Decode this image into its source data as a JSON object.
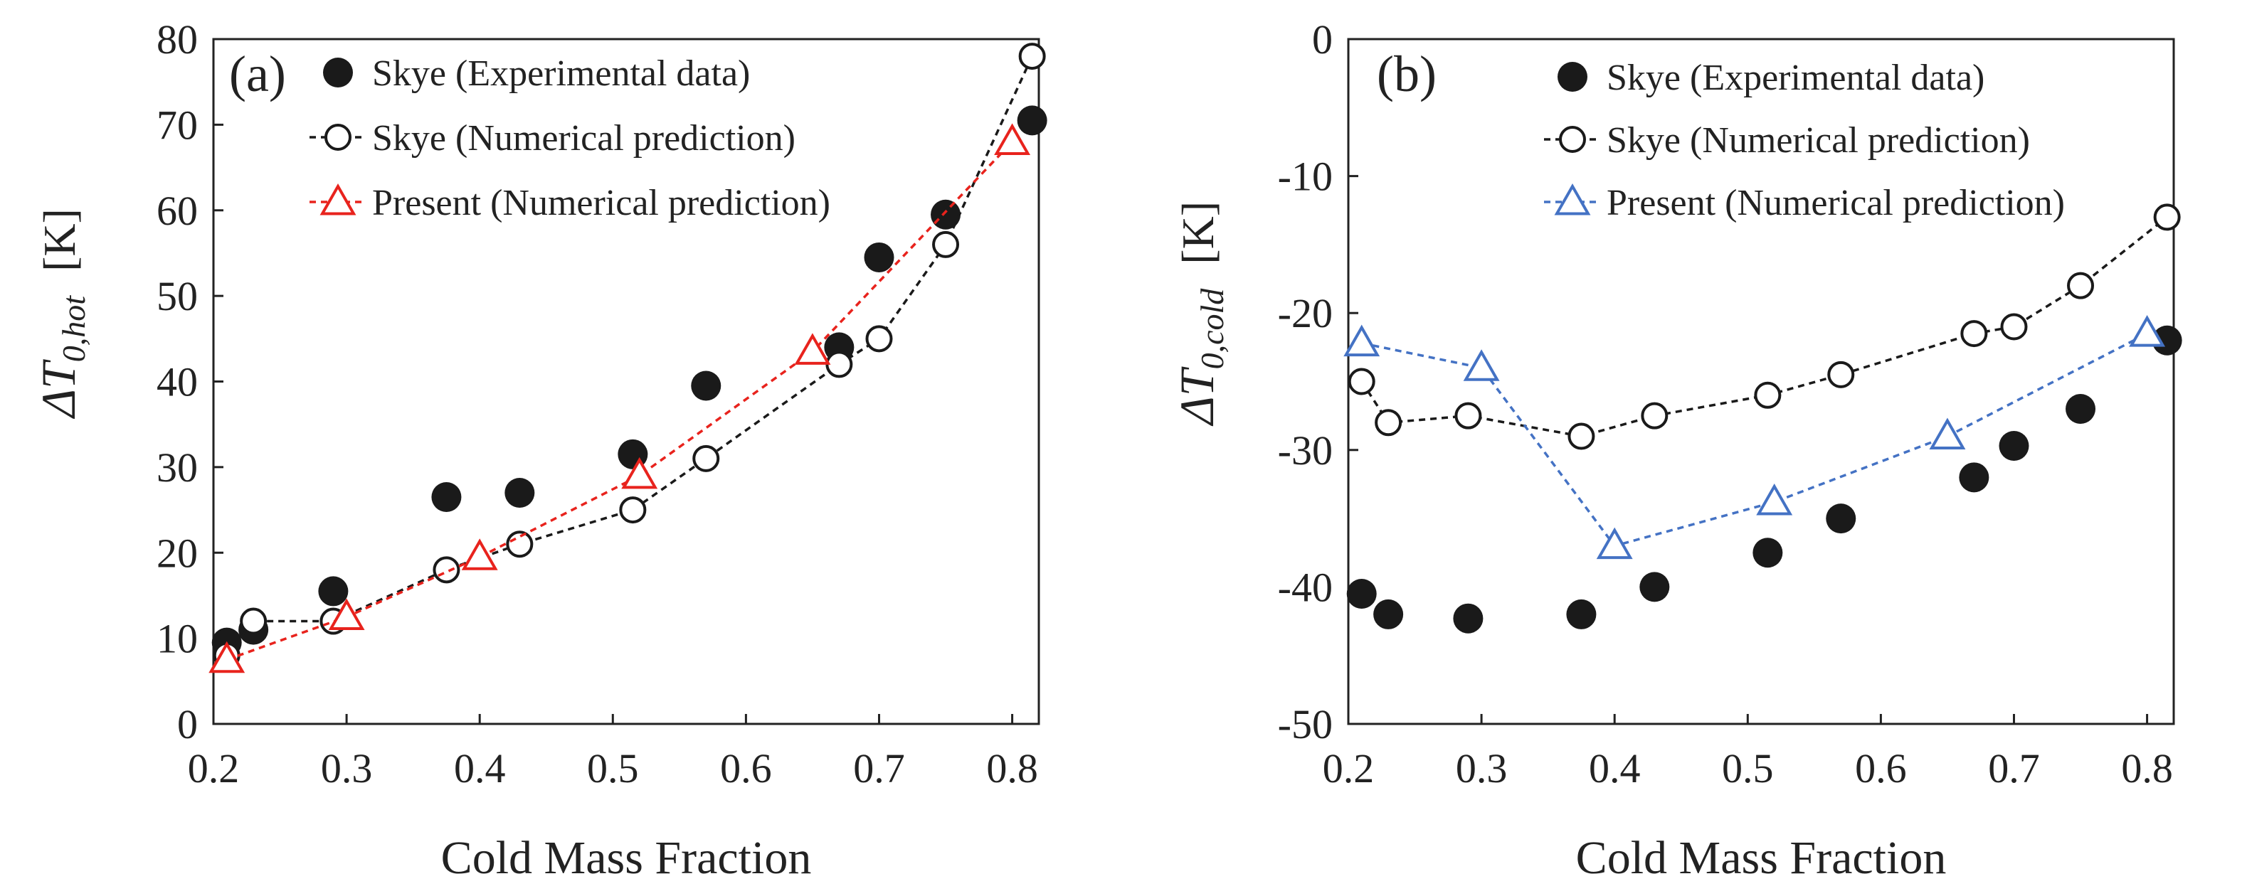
{
  "chart_data": [
    {
      "type": "scatter",
      "panel": "(a)",
      "xlabel": "Cold Mass Fraction",
      "ylabel": {
        "main": "ΔT",
        "sub": "0,hot",
        "unit": "[K]"
      },
      "xlim": [
        0.2,
        0.82
      ],
      "ylim": [
        0,
        80
      ],
      "xticks": [
        "0.2",
        "0.3",
        "0.4",
        "0.5",
        "0.6",
        "0.7",
        "0.8"
      ],
      "yticks": [
        "0",
        "10",
        "20",
        "30",
        "40",
        "50",
        "60",
        "70",
        "80"
      ],
      "legend_position": "top-left",
      "series": [
        {
          "name": "Skye (Experimental data)",
          "marker": "filled-circle",
          "line": false,
          "color": "#1a1a1a",
          "x": [
            0.21,
            0.23,
            0.29,
            0.375,
            0.43,
            0.515,
            0.57,
            0.67,
            0.7,
            0.75,
            0.815
          ],
          "y": [
            9.5,
            11,
            15.5,
            26.5,
            27,
            31.5,
            39.5,
            44,
            54.5,
            59.5,
            70.5
          ]
        },
        {
          "name": "Skye (Numerical prediction)",
          "marker": "open-circle",
          "line": true,
          "color": "#1a1a1a",
          "x": [
            0.21,
            0.23,
            0.29,
            0.375,
            0.43,
            0.515,
            0.57,
            0.67,
            0.7,
            0.75,
            0.815
          ],
          "y": [
            8,
            12,
            12,
            18,
            21,
            25,
            31,
            42,
            45,
            56,
            78
          ]
        },
        {
          "name": "Present (Numerical prediction)",
          "marker": "open-triangle",
          "line": true,
          "color": "#e8231d",
          "x": [
            0.21,
            0.3,
            0.4,
            0.52,
            0.65,
            0.8
          ],
          "y": [
            7.5,
            12.5,
            19.5,
            29,
            43.5,
            68
          ]
        }
      ]
    },
    {
      "type": "scatter",
      "panel": "(b)",
      "xlabel": "Cold Mass Fraction",
      "ylabel": {
        "main": "ΔT",
        "sub": "0,cold",
        "unit": "[K]"
      },
      "xlim": [
        0.2,
        0.82
      ],
      "ylim": [
        -50,
        0
      ],
      "xticks": [
        "0.2",
        "0.3",
        "0.4",
        "0.5",
        "0.6",
        "0.7",
        "0.8"
      ],
      "yticks": [
        "-50",
        "-40",
        "-30",
        "-20",
        "-10",
        "0"
      ],
      "legend_position": "top-center",
      "series": [
        {
          "name": "Skye (Experimental data)",
          "marker": "filled-circle",
          "line": false,
          "color": "#1a1a1a",
          "x": [
            0.21,
            0.23,
            0.29,
            0.375,
            0.43,
            0.515,
            0.57,
            0.67,
            0.7,
            0.75,
            0.815
          ],
          "y": [
            -40.5,
            -42,
            -42.3,
            -42,
            -40,
            -37.5,
            -35,
            -32,
            -29.7,
            -27,
            -22
          ]
        },
        {
          "name": "Skye (Numerical prediction)",
          "marker": "open-circle",
          "line": true,
          "color": "#1a1a1a",
          "x": [
            0.21,
            0.23,
            0.29,
            0.375,
            0.43,
            0.515,
            0.57,
            0.67,
            0.7,
            0.75,
            0.815
          ],
          "y": [
            -25,
            -28,
            -27.5,
            -29,
            -27.5,
            -26,
            -24.5,
            -21.5,
            -21,
            -18,
            -13
          ]
        },
        {
          "name": "Present (Numerical prediction)",
          "marker": "open-triangle",
          "line": true,
          "color": "#4472c4",
          "x": [
            0.21,
            0.3,
            0.4,
            0.52,
            0.65,
            0.8
          ],
          "y": [
            -22.2,
            -24,
            -37,
            -33.8,
            -29,
            -21.5
          ]
        }
      ]
    }
  ]
}
